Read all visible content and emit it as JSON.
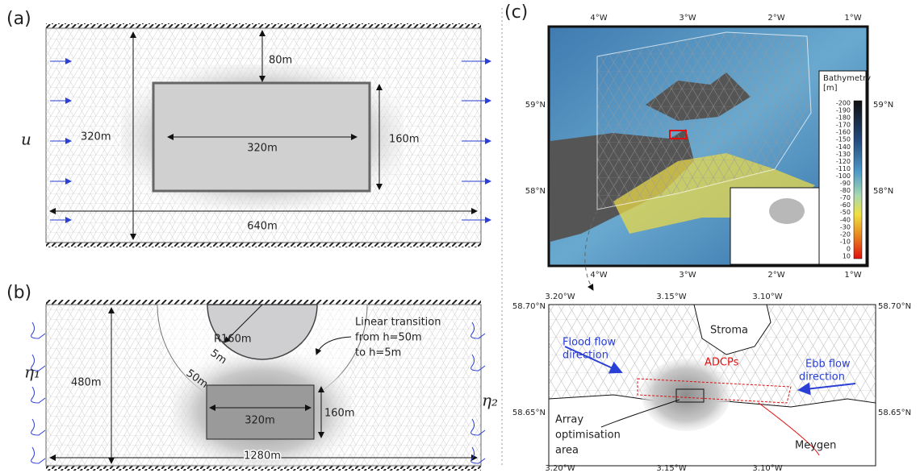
{
  "panel_a": {
    "label": "(a)",
    "inflow": "u",
    "domain_height": "320m",
    "gap": "80m",
    "farm_length": "320m",
    "farm_width": "160m",
    "domain_length": "640m"
  },
  "panel_b": {
    "label": "(b)",
    "inflow": "η₁",
    "outflow": "η₂",
    "domain_height": "480m",
    "radius": "R160m",
    "depth_inner": "5m",
    "depth_outer": "50m",
    "transition": [
      "Linear transition",
      "from h=50m",
      "to h=5m"
    ],
    "farm_length": "320m",
    "farm_width": "160m",
    "domain_length": "1280m"
  },
  "panel_c": {
    "label": "(c)",
    "regional_map": {
      "lon_ticks": [
        "4°W",
        "3°W",
        "2°W",
        "1°W"
      ],
      "lat_ticks": [
        "59°N",
        "58°N"
      ],
      "colorbar_title": [
        "Bathymetry",
        "[m]"
      ],
      "colorbar_ticks": [
        -200,
        -190,
        -180,
        -170,
        -160,
        -150,
        -140,
        -130,
        -120,
        -110,
        -100,
        -90,
        -80,
        -70,
        -60,
        -50,
        -40,
        -30,
        -20,
        -10,
        0,
        10
      ]
    },
    "site_map": {
      "lon_ticks": [
        "3.20°W",
        "3.15°W",
        "3.10°W"
      ],
      "lat_ticks": [
        "58.70°N",
        "58.65°N"
      ],
      "island": "Stroma",
      "flood": [
        "Flood flow",
        "direction"
      ],
      "ebb": [
        "Ebb flow",
        "direction"
      ],
      "adcps": "ADCPs",
      "array_area": [
        "Array",
        "optimisation",
        "area"
      ],
      "site": "Meygen"
    }
  }
}
